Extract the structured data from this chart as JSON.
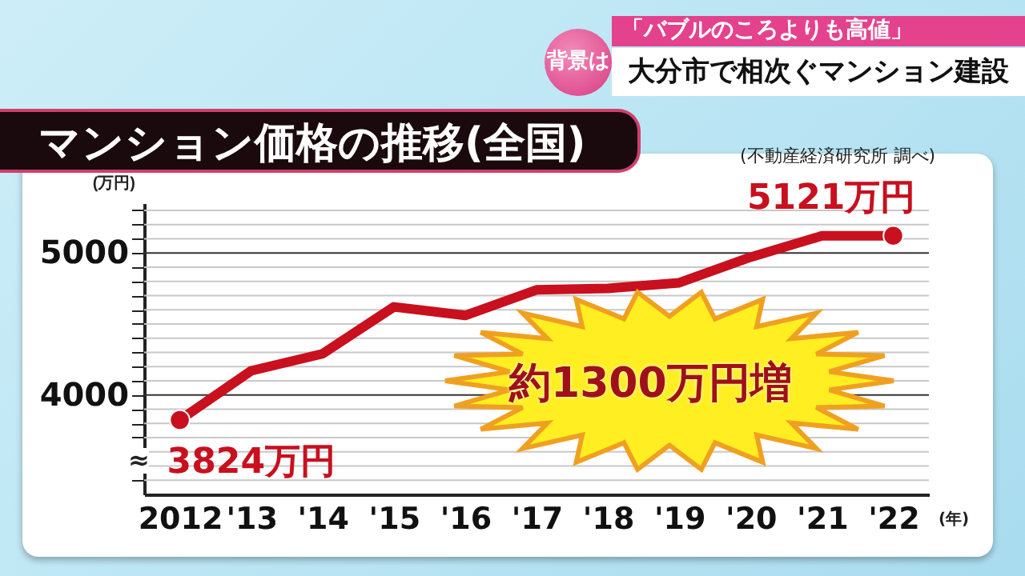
{
  "chart_data": {
    "type": "line",
    "title": "マンション価格の推移(全国)",
    "xlabel": "(年)",
    "ylabel": "(万円)",
    "annotations": [
      "背景は",
      "「バブルのころよりも高値」",
      "大分市で相次ぐマンション建設",
      "(不動産経済研究所 調べ)",
      "約1300万円増",
      "≈"
    ],
    "categories": [
      "2012",
      "'13",
      "'14",
      "'15",
      "'16",
      "'17",
      "'18",
      "'19",
      "'20",
      "'21",
      "'22"
    ],
    "series": [
      {
        "color": "#c8101e",
        "values": [
          3824,
          4170,
          4290,
          4620,
          4560,
          4740,
          4750,
          4790,
          4970,
          5120,
          5121
        ],
        "value_labels": [
          "3824万円",
          null,
          null,
          null,
          null,
          null,
          null,
          null,
          null,
          null,
          "5121万円"
        ]
      }
    ],
    "ylim": [
      3300,
      5350
    ],
    "yticks": [
      {
        "value": 3400,
        "label": null
      },
      {
        "value": 3500,
        "label": null
      },
      {
        "value": 3600,
        "label": null
      },
      {
        "value": 3700,
        "label": null
      },
      {
        "value": 3800,
        "label": null
      },
      {
        "value": 3900,
        "label": null
      },
      4000,
      {
        "value": 4100,
        "label": null
      },
      {
        "value": 4200,
        "label": null
      },
      {
        "value": 4300,
        "label": null
      },
      {
        "value": 4400,
        "label": null
      },
      {
        "value": 4500,
        "label": null
      },
      {
        "value": 4600,
        "label": null
      },
      {
        "value": 4700,
        "label": null
      },
      {
        "value": 4800,
        "label": null
      },
      {
        "value": 4900,
        "label": null
      },
      5000,
      {
        "value": 5100,
        "label": null
      },
      {
        "value": 5200,
        "label": null
      },
      {
        "value": 5300,
        "label": null
      }
    ],
    "grid": true,
    "line_style": "solid"
  }
}
